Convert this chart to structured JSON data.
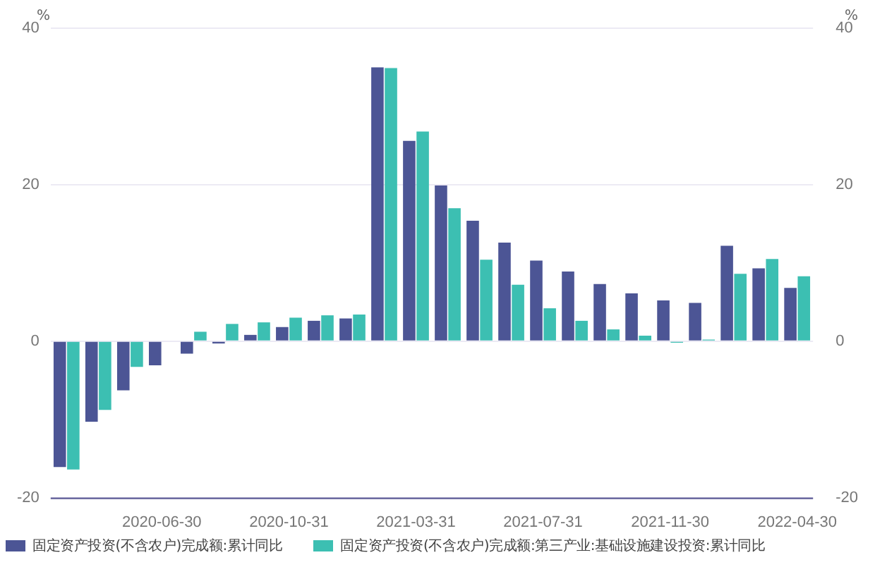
{
  "chart_data": {
    "type": "bar",
    "categories": [
      null,
      null,
      null,
      "2020-06-30",
      null,
      null,
      null,
      "2020-10-31",
      null,
      null,
      null,
      "2021-03-31",
      null,
      null,
      null,
      "2021-07-31",
      null,
      null,
      null,
      "2021-11-30",
      null,
      null,
      null,
      "2022-04-30"
    ],
    "series": [
      {
        "name": "固定资产投资(不含农户)完成额:累计同比",
        "color": "#4c5595",
        "values": [
          -16.1,
          -10.3,
          -6.3,
          -3.1,
          -1.6,
          -0.3,
          0.8,
          1.8,
          2.6,
          2.9,
          35.0,
          25.6,
          19.9,
          15.4,
          12.6,
          10.3,
          8.9,
          7.3,
          6.1,
          5.2,
          4.9,
          12.2,
          9.3,
          6.8
        ]
      },
      {
        "name": "固定资产投资(不含农户)完成额:第三产业:基础设施建设投资:累计同比",
        "color": "#3cbfb2",
        "values": [
          -16.4,
          -8.8,
          -3.3,
          null,
          1.2,
          2.2,
          2.4,
          3.0,
          3.3,
          3.4,
          34.9,
          26.8,
          17.0,
          10.4,
          7.2,
          4.2,
          2.6,
          1.5,
          0.7,
          -0.2,
          0.2,
          8.6,
          10.5,
          8.3
        ]
      }
    ],
    "ylabel": "%",
    "y2label": "%",
    "ylim": [
      -20,
      40
    ],
    "yticks": [
      -20,
      0,
      20,
      40
    ],
    "y2lim": [
      -20,
      40
    ],
    "y2ticks": [
      -20,
      0,
      20,
      40
    ],
    "grid": "y",
    "legend": "bottom"
  }
}
